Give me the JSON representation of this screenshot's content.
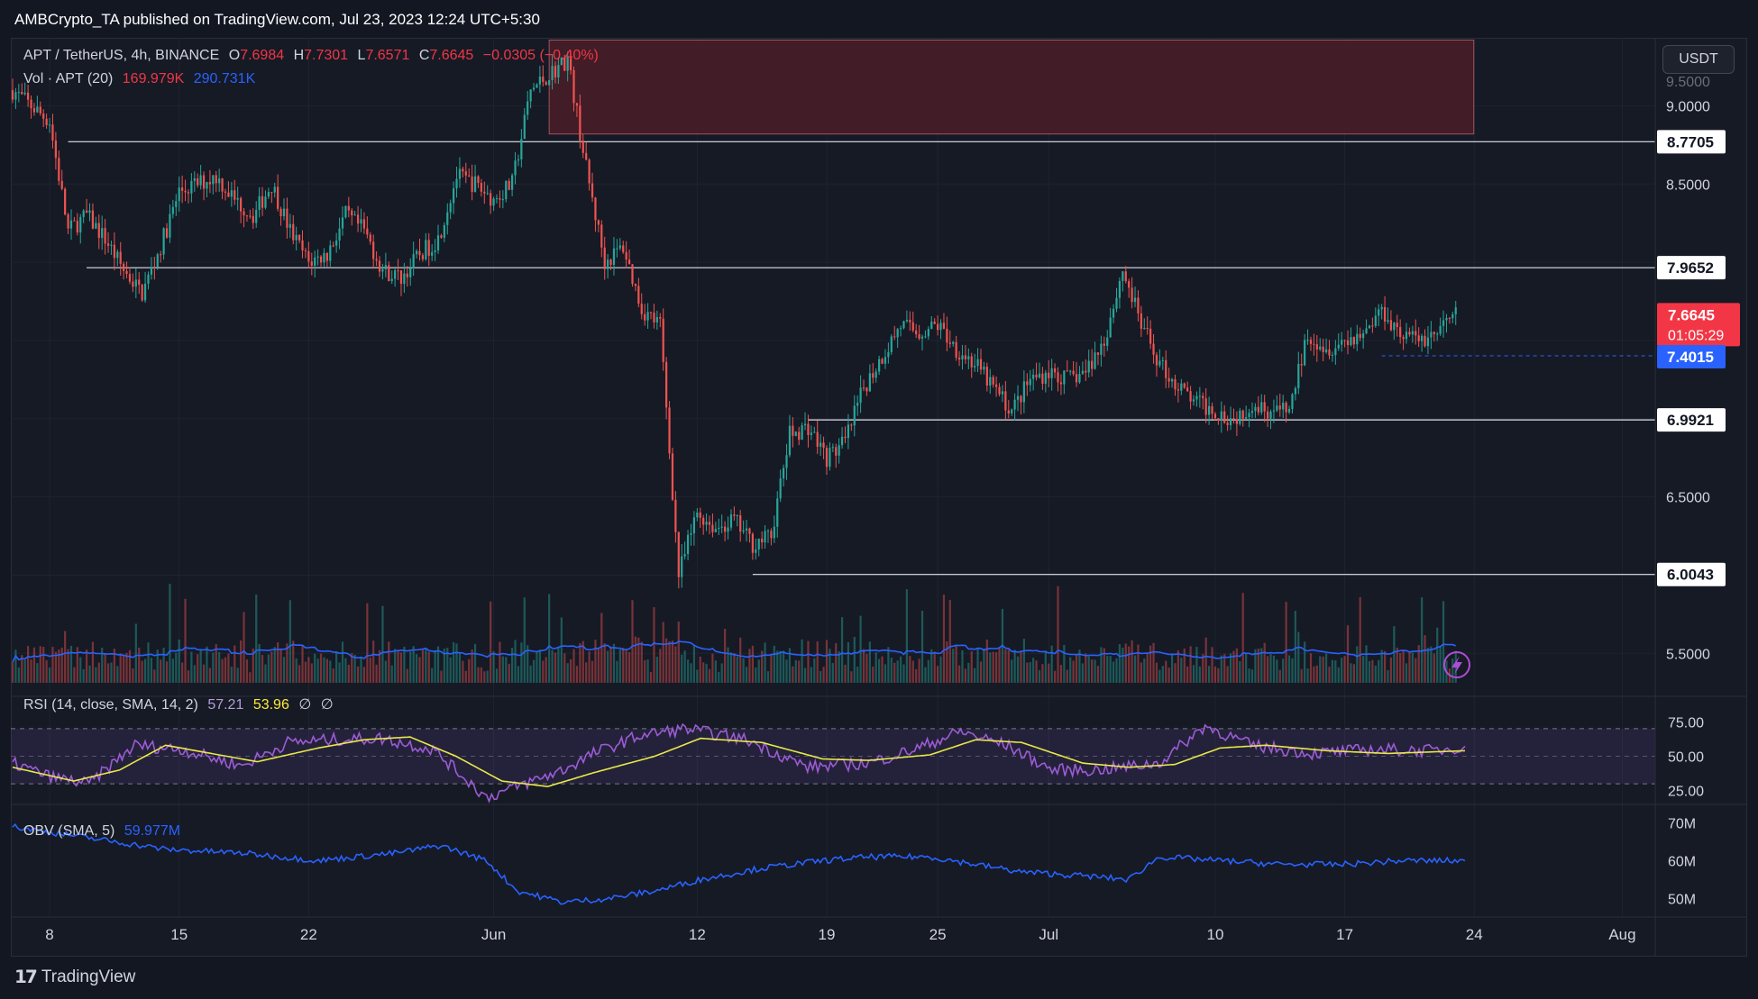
{
  "header": {
    "publisher": "AMBCrypto_TA published on TradingView.com, Jul 23, 2023 12:24 UTC+5:30"
  },
  "legend": {
    "symbol": "APT / TetherUS, 4h, BINANCE",
    "o_label": "O",
    "o_value": "7.6984",
    "h_label": "H",
    "h_value": "7.7301",
    "l_label": "L",
    "l_value": "7.6571",
    "c_label": "C",
    "c_value": "7.6645",
    "change": "−0.0305 (−0.40%)",
    "vol_label": "Vol · APT (20)",
    "vol_value_1": "169.979K",
    "vol_value_2": "290.731K",
    "rsi_label": "RSI (14, close, SMA, 14, 2)",
    "rsi_value": "57.21",
    "rsi_sma": "53.96",
    "rsi_extra_1": "∅",
    "rsi_extra_2": "∅",
    "obv_label": "OBV (SMA, 5)",
    "obv_value": "59.977M"
  },
  "toolbar": {
    "currency_button": "USDT"
  },
  "footer": {
    "brand": "TradingView",
    "brand_icon": "tradingview-logo-icon"
  },
  "colors": {
    "up": "#26a69a",
    "down": "#ef5350",
    "zone": "#5c2430",
    "rsi_line": "#9c5bd6",
    "rsi_sma": "#e8e84a",
    "obv": "#2962ff"
  },
  "chart_data": [
    {
      "type": "candlestick",
      "name": "APT / TetherUS",
      "ylim": [
        5.3,
        9.4
      ],
      "price_ticks": [
        "9.0000",
        "8.5000",
        "6.5000",
        "5.5000"
      ],
      "top_tick_partial": "9.5000",
      "x_ticks": [
        "8",
        "15",
        "22",
        "Jun",
        "12",
        "19",
        "25",
        "Jul",
        "10",
        "17",
        "24",
        "Aug"
      ],
      "horizontal_levels": [
        {
          "value": 8.7705,
          "label": "8.7705"
        },
        {
          "value": 7.9652,
          "label": "7.9652"
        },
        {
          "value": 6.9921,
          "label": "6.9921"
        },
        {
          "value": 6.0043,
          "label": "6.0043"
        }
      ],
      "supply_zone": {
        "from_price": 8.82,
        "to_price": 9.42,
        "from_date": "Jun 4",
        "to_date": "Jul 23"
      },
      "last_price": {
        "value": 7.6645,
        "label": "7.6645",
        "countdown": "01:05:29"
      },
      "dashed_level": {
        "value": 7.4015,
        "label": "7.4015"
      },
      "close_path": [
        [
          "May 6",
          9.1
        ],
        [
          "May 7",
          9.0
        ],
        [
          "May 8",
          8.9
        ],
        [
          "May 9",
          8.2
        ],
        [
          "May 10",
          8.3
        ],
        [
          "May 11",
          8.15
        ],
        [
          "May 12",
          7.95
        ],
        [
          "May 13",
          7.8
        ],
        [
          "May 14",
          8.1
        ],
        [
          "May 15",
          8.45
        ],
        [
          "May 16",
          8.5
        ],
        [
          "May 17",
          8.55
        ],
        [
          "May 18",
          8.4
        ],
        [
          "May 19",
          8.3
        ],
        [
          "May 20",
          8.5
        ],
        [
          "May 21",
          8.2
        ],
        [
          "May 22",
          8.0
        ],
        [
          "May 23",
          8.05
        ],
        [
          "May 24",
          8.3
        ],
        [
          "May 25",
          8.2
        ],
        [
          "May 26",
          7.95
        ],
        [
          "May 27",
          7.9
        ],
        [
          "May 28",
          8.05
        ],
        [
          "May 29",
          8.15
        ],
        [
          "May 30",
          8.55
        ],
        [
          "May 31",
          8.5
        ],
        [
          "Jun 1",
          8.4
        ],
        [
          "Jun 2",
          8.5
        ],
        [
          "Jun 3",
          9.1
        ],
        [
          "Jun 4",
          9.2
        ],
        [
          "Jun 5",
          9.3
        ],
        [
          "Jun 6",
          8.6
        ],
        [
          "Jun 7",
          8.0
        ],
        [
          "Jun 8",
          8.1
        ],
        [
          "Jun 9",
          7.7
        ],
        [
          "Jun 10",
          7.6
        ],
        [
          "Jun 11",
          6.0
        ],
        [
          "Jun 12",
          6.4
        ],
        [
          "Jun 13",
          6.3
        ],
        [
          "Jun 14",
          6.35
        ],
        [
          "Jun 15",
          6.2
        ],
        [
          "Jun 16",
          6.25
        ],
        [
          "Jun 17",
          6.9
        ],
        [
          "Jun 18",
          6.95
        ],
        [
          "Jun 19",
          6.75
        ],
        [
          "Jun 20",
          6.85
        ],
        [
          "Jun 21",
          7.2
        ],
        [
          "Jun 22",
          7.4
        ],
        [
          "Jun 23",
          7.6
        ],
        [
          "Jun 24",
          7.55
        ],
        [
          "Jun 25",
          7.6
        ],
        [
          "Jun 26",
          7.45
        ],
        [
          "Jun 27",
          7.35
        ],
        [
          "Jun 28",
          7.2
        ],
        [
          "Jun 29",
          7.05
        ],
        [
          "Jun 30",
          7.25
        ],
        [
          "Jul 1",
          7.3
        ],
        [
          "Jul 2",
          7.25
        ],
        [
          "Jul 3",
          7.3
        ],
        [
          "Jul 4",
          7.5
        ],
        [
          "Jul 5",
          7.95
        ],
        [
          "Jul 6",
          7.6
        ],
        [
          "Jul 7",
          7.35
        ],
        [
          "Jul 8",
          7.2
        ],
        [
          "Jul 9",
          7.1
        ],
        [
          "Jul 10",
          7.05
        ],
        [
          "Jul 11",
          7.0
        ],
        [
          "Jul 12",
          7.1
        ],
        [
          "Jul 13",
          7.05
        ],
        [
          "Jul 14",
          7.05
        ],
        [
          "Jul 15",
          7.55
        ],
        [
          "Jul 16",
          7.45
        ],
        [
          "Jul 17",
          7.5
        ],
        [
          "Jul 18",
          7.55
        ],
        [
          "Jul 19",
          7.7
        ],
        [
          "Jul 20",
          7.55
        ],
        [
          "Jul 21",
          7.5
        ],
        [
          "Jul 22",
          7.55
        ],
        [
          "Jul 23",
          7.6645
        ]
      ]
    },
    {
      "type": "bar",
      "name": "Vol · APT (20)",
      "values_note_free": true,
      "last_values": [
        "169.979K",
        "290.731K"
      ]
    },
    {
      "type": "line",
      "name": "RSI (14, close, SMA, 14, 2)",
      "ylim": [
        15,
        85
      ],
      "y_ticks": [
        "75.00",
        "50.00",
        "25.00"
      ],
      "band": [
        30,
        70
      ],
      "rsi": [
        [
          0,
          45
        ],
        [
          5,
          35
        ],
        [
          10,
          30
        ],
        [
          16,
          58
        ],
        [
          22,
          55
        ],
        [
          30,
          43
        ],
        [
          36,
          60
        ],
        [
          42,
          62
        ],
        [
          48,
          63
        ],
        [
          55,
          55
        ],
        [
          62,
          20
        ],
        [
          68,
          32
        ],
        [
          72,
          40
        ],
        [
          76,
          52
        ],
        [
          82,
          65
        ],
        [
          88,
          70
        ],
        [
          96,
          62
        ],
        [
          104,
          42
        ],
        [
          112,
          45
        ],
        [
          118,
          55
        ],
        [
          124,
          68
        ],
        [
          130,
          58
        ],
        [
          136,
          40
        ],
        [
          142,
          40
        ],
        [
          150,
          45
        ],
        [
          156,
          72
        ],
        [
          162,
          58
        ],
        [
          170,
          52
        ],
        [
          178,
          55
        ],
        [
          186,
          54
        ],
        [
          190,
          57.21
        ]
      ],
      "sma": [
        [
          0,
          42
        ],
        [
          8,
          32
        ],
        [
          14,
          40
        ],
        [
          20,
          58
        ],
        [
          26,
          52
        ],
        [
          32,
          46
        ],
        [
          40,
          56
        ],
        [
          46,
          62
        ],
        [
          52,
          64
        ],
        [
          58,
          50
        ],
        [
          64,
          32
        ],
        [
          70,
          28
        ],
        [
          76,
          38
        ],
        [
          84,
          50
        ],
        [
          90,
          63
        ],
        [
          98,
          60
        ],
        [
          106,
          48
        ],
        [
          112,
          47
        ],
        [
          120,
          51
        ],
        [
          126,
          62
        ],
        [
          132,
          60
        ],
        [
          140,
          45
        ],
        [
          146,
          42
        ],
        [
          152,
          44
        ],
        [
          158,
          56
        ],
        [
          164,
          58
        ],
        [
          172,
          54
        ],
        [
          180,
          52
        ],
        [
          190,
          53.96
        ]
      ]
    },
    {
      "type": "line",
      "name": "OBV (SMA, 5)",
      "ylim": [
        47,
        72
      ],
      "y_ticks": [
        "70M",
        "60M",
        "50M"
      ],
      "obv": [
        [
          0,
          69
        ],
        [
          10,
          66
        ],
        [
          20,
          63
        ],
        [
          30,
          62
        ],
        [
          40,
          60
        ],
        [
          50,
          62
        ],
        [
          56,
          64
        ],
        [
          62,
          60
        ],
        [
          66,
          52
        ],
        [
          72,
          49
        ],
        [
          78,
          50
        ],
        [
          84,
          52
        ],
        [
          90,
          55
        ],
        [
          98,
          58
        ],
        [
          106,
          60
        ],
        [
          112,
          61
        ],
        [
          120,
          61
        ],
        [
          126,
          59
        ],
        [
          132,
          57
        ],
        [
          140,
          56
        ],
        [
          146,
          55
        ],
        [
          150,
          61
        ],
        [
          158,
          60
        ],
        [
          166,
          59
        ],
        [
          174,
          59
        ],
        [
          182,
          60
        ],
        [
          190,
          59.977
        ]
      ]
    }
  ]
}
